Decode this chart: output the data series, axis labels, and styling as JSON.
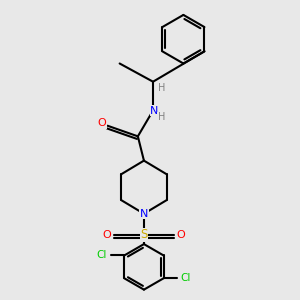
{
  "background_color": "#e8e8e8",
  "bond_color": "#000000",
  "atom_colors": {
    "N": "#0000ff",
    "O": "#ff0000",
    "S": "#ccaa00",
    "Cl": "#00cc00",
    "C": "#000000",
    "H": "#808080"
  },
  "figsize": [
    3.0,
    3.0
  ],
  "dpi": 100,
  "lw": 1.5
}
